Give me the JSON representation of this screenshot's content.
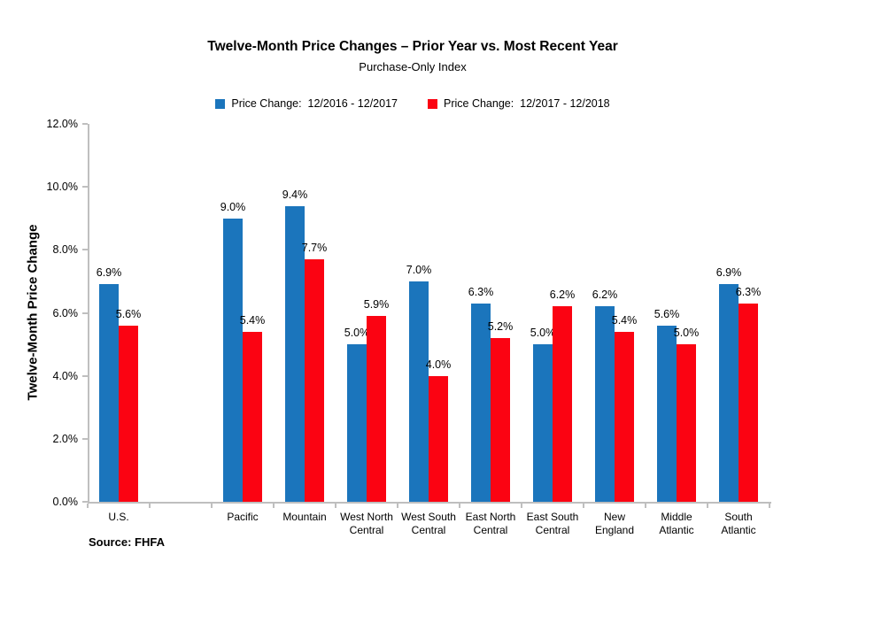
{
  "header": {
    "title": "Twelve-Month Price Changes – Prior Year vs. Most Recent Year",
    "subtitle": "Purchase-Only Index"
  },
  "legend": {
    "items": [
      {
        "label": "Price Change:  12/2016 - 12/2017",
        "color": "#1B75BC"
      },
      {
        "label": "Price Change:  12/2017 - 12/2018",
        "color": "#FB0312"
      }
    ]
  },
  "footer": {
    "source": "Source: FHFA"
  },
  "chart_data": {
    "type": "bar",
    "title": "Twelve-Month Price Changes – Prior Year vs. Most Recent Year",
    "subtitle": "Purchase-Only Index",
    "xlabel": "",
    "ylabel": "Twelve-Month Price Change",
    "ylim": [
      0,
      12
    ],
    "ytick_step": 2,
    "ytick_format": "0.0%",
    "grid": false,
    "legend_position": "top",
    "data_labels": true,
    "categories": [
      "U.S.",
      "",
      "Pacific",
      "Mountain",
      "West North Central",
      "West South Central",
      "East North Central",
      "East South Central",
      "New England",
      "Middle Atlantic",
      "South Atlantic"
    ],
    "series": [
      {
        "name": "Price Change:  12/2016 - 12/2017",
        "color": "#1B75BC",
        "values": [
          6.9,
          null,
          9.0,
          9.4,
          5.0,
          7.0,
          6.3,
          5.0,
          6.2,
          5.6,
          6.9
        ]
      },
      {
        "name": "Price Change:  12/2017 - 12/2018",
        "color": "#FB0312",
        "values": [
          5.6,
          null,
          5.4,
          7.7,
          5.9,
          4.0,
          5.2,
          6.2,
          5.4,
          5.0,
          6.3
        ]
      }
    ]
  }
}
